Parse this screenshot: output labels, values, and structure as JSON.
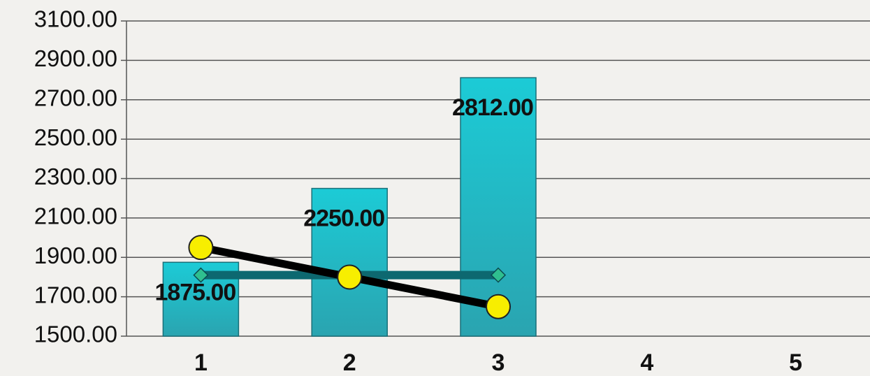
{
  "chart_data": {
    "type": "bar",
    "categories": [
      "1",
      "2",
      "3",
      "4",
      "5"
    ],
    "series": [
      {
        "type": "bar",
        "color": "#1cc3cf",
        "values": [
          1875,
          2250,
          2812,
          null,
          null
        ],
        "value_labels": [
          "1875.00",
          "2250.00",
          "2812.00",
          null,
          null
        ]
      },
      {
        "type": "line",
        "color": "#0d6870",
        "marker": "diamond",
        "marker_color": "#2fbf8f",
        "values": [
          1810,
          1810,
          1810,
          null,
          null
        ]
      },
      {
        "type": "line",
        "color": "#000000",
        "marker": "circle",
        "marker_color": "#f7ee00",
        "values": [
          1950,
          1800,
          1650,
          null,
          null
        ]
      }
    ],
    "ylim": [
      1500,
      3100
    ],
    "yticks": [
      {
        "value": 1500,
        "label": "1500.00"
      },
      {
        "value": 1700,
        "label": "1700.00"
      },
      {
        "value": 1900,
        "label": "1900.00"
      },
      {
        "value": 2100,
        "label": "2100.00"
      },
      {
        "value": 2300,
        "label": "2300.00"
      },
      {
        "value": 2500,
        "label": "2500.00"
      },
      {
        "value": 2700,
        "label": "2700.00"
      },
      {
        "value": 2900,
        "label": "2900.00"
      },
      {
        "value": 3100,
        "label": "3100.00"
      }
    ],
    "grid": true
  }
}
